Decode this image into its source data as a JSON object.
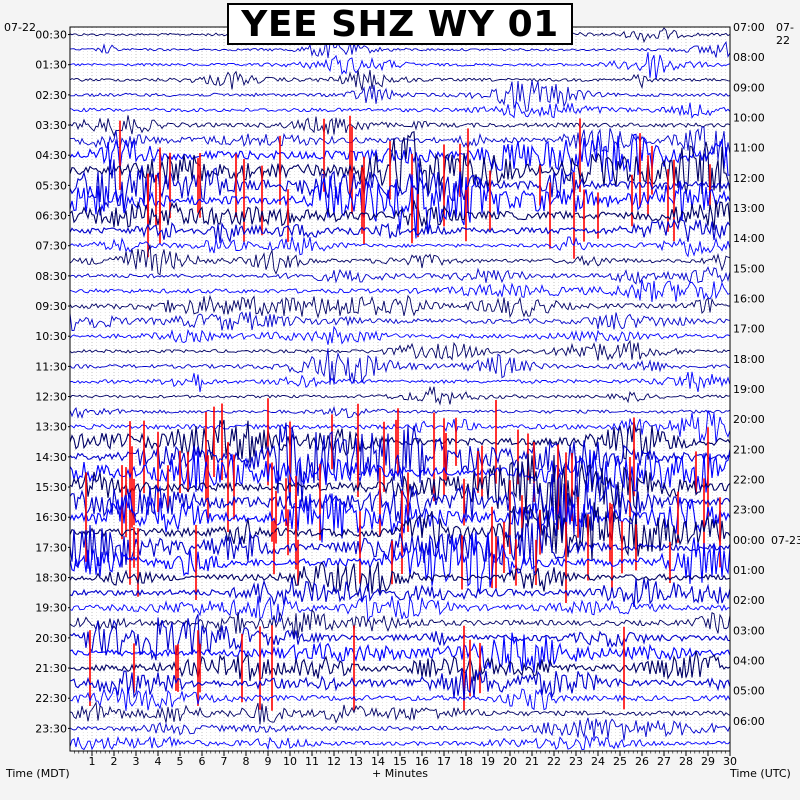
{
  "chart_data": {
    "type": "line",
    "title": "YEE SHZ WY 01",
    "xlabel": "+ Minutes",
    "left_axis_label": "Time (MDT)",
    "right_axis_label": "Time (UTC)",
    "left_date": "07-22",
    "right_date_top": "07-22",
    "right_date_rollover": "07-23",
    "x_ticks": [
      "1",
      "2",
      "3",
      "4",
      "5",
      "6",
      "7",
      "8",
      "9",
      "10",
      "11",
      "12",
      "13",
      "14",
      "15",
      "16",
      "17",
      "18",
      "19",
      "20",
      "21",
      "22",
      "23",
      "24",
      "25",
      "26",
      "27",
      "28",
      "29",
      "30"
    ],
    "xlim": [
      0,
      30
    ],
    "left_hours": [
      "00:30",
      "01:30",
      "02:30",
      "03:30",
      "04:30",
      "05:30",
      "06:30",
      "07:30",
      "08:30",
      "09:30",
      "10:30",
      "11:30",
      "12:30",
      "13:30",
      "14:30",
      "15:30",
      "16:30",
      "17:30",
      "18:30",
      "19:30",
      "20:30",
      "21:30",
      "22:30",
      "23:30"
    ],
    "right_hours": [
      "07:00",
      "08:00",
      "09:00",
      "10:00",
      "11:00",
      "12:00",
      "13:00",
      "14:00",
      "15:00",
      "16:00",
      "17:00",
      "18:00",
      "19:00",
      "20:00",
      "21:00",
      "22:00",
      "23:00",
      "00:00",
      "01:00",
      "02:00",
      "03:00",
      "04:00",
      "05:00",
      "06:00"
    ],
    "trace_count": 48,
    "trace_colors": [
      "#000066",
      "#0000cc",
      "#0000ff"
    ],
    "clip_color": "#ff0000",
    "grid": true,
    "activity": [
      0.15,
      0.15,
      0.2,
      0.25,
      0.3,
      0.35,
      0.45,
      0.6,
      1.0,
      1.0,
      1.0,
      1.0,
      1.0,
      0.7,
      0.3,
      0.35,
      0.4,
      0.45,
      0.5,
      0.5,
      0.4,
      0.3,
      0.35,
      0.35,
      0.25,
      0.3,
      0.5,
      0.8,
      1.0,
      1.0,
      1.0,
      1.0,
      1.0,
      1.0,
      0.9,
      0.9,
      0.7,
      0.7,
      0.6,
      0.6,
      0.7,
      0.7,
      0.8,
      0.7,
      0.6,
      0.5,
      0.45,
      0.4
    ]
  }
}
